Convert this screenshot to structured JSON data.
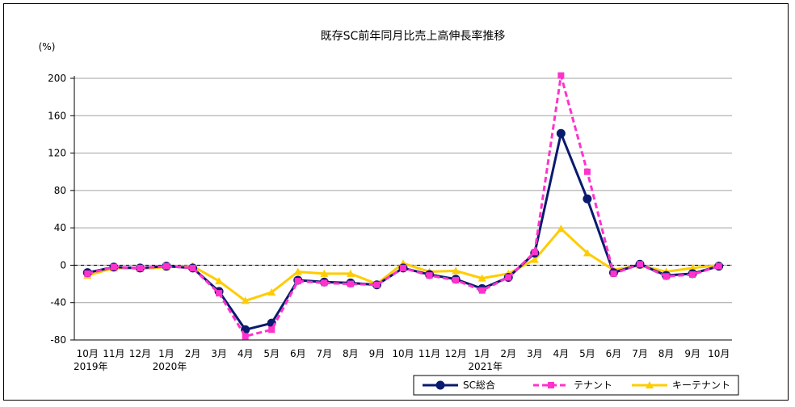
{
  "chart_data": {
    "type": "line",
    "title": "既存SC前年同月比売上高伸長率推移",
    "ylabel": "(%)",
    "xlabel": "",
    "ylim": [
      -80,
      200
    ],
    "yticks": [
      200,
      160,
      120,
      80,
      40,
      0,
      -40,
      -80
    ],
    "grid": true,
    "legend_position": "bottom-right",
    "categories": [
      "10月",
      "11月",
      "12月",
      "1月",
      "2月",
      "3月",
      "4月",
      "5月",
      "6月",
      "7月",
      "8月",
      "9月",
      "10月",
      "11月",
      "12月",
      "1月",
      "2月",
      "3月",
      "4月",
      "5月",
      "6月",
      "7月",
      "8月",
      "9月",
      "10月"
    ],
    "year_labels": [
      {
        "index": 0,
        "label": "2019年"
      },
      {
        "index": 3,
        "label": "2020年"
      },
      {
        "index": 15,
        "label": "2021年"
      }
    ],
    "series": [
      {
        "name": "SC総合",
        "color": "#0a1a6e",
        "marker": "circle",
        "dash": "solid",
        "values": [
          -8,
          -2,
          -3,
          -1,
          -3,
          -28,
          -69,
          -62,
          -16,
          -18,
          -19,
          -21,
          -3,
          -10,
          -15,
          -25,
          -13,
          13,
          141,
          71,
          -8,
          1,
          -11,
          -9,
          -1
        ]
      },
      {
        "name": "テナント",
        "color": "#ff33cc",
        "marker": "square",
        "dash": "dashed",
        "values": [
          -9,
          -2,
          -3,
          -1,
          -3,
          -30,
          -76,
          -69,
          -17,
          -19,
          -20,
          -21,
          -3,
          -11,
          -16,
          -27,
          -13,
          14,
          203,
          100,
          -9,
          1,
          -12,
          -10,
          -1
        ]
      },
      {
        "name": "キーテナント",
        "color": "#ffcc00",
        "marker": "triangle",
        "dash": "solid",
        "values": [
          -11,
          -3,
          -4,
          -2,
          -1,
          -17,
          -38,
          -29,
          -7,
          -9,
          -9,
          -20,
          2,
          -7,
          -6,
          -14,
          -9,
          6,
          39,
          13,
          -5,
          0,
          -7,
          -3,
          0
        ]
      }
    ]
  }
}
